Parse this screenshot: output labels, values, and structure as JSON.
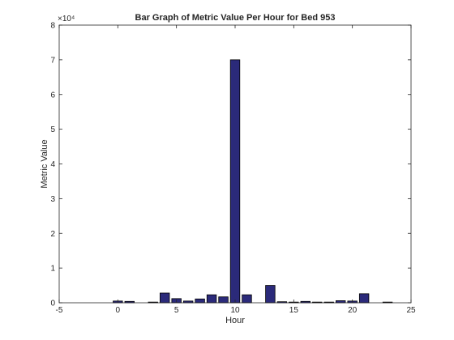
{
  "chart_data": {
    "type": "bar",
    "title": "Bar Graph of Metric Value Per Hour for Bed 953",
    "xlabel": "Hour",
    "ylabel": "Metric Value",
    "xlim": [
      -5,
      25
    ],
    "ylim": [
      0,
      80000
    ],
    "xticks": [
      -5,
      0,
      5,
      10,
      15,
      20,
      25
    ],
    "xtick_labels": [
      "-5",
      "0",
      "5",
      "10",
      "15",
      "20",
      "25"
    ],
    "yticks": [
      0,
      10000,
      20000,
      30000,
      40000,
      50000,
      60000,
      70000,
      80000
    ],
    "ytick_labels": [
      "0",
      "1",
      "2",
      "3",
      "4",
      "5",
      "6",
      "7",
      "8"
    ],
    "y_exponent_label": "×10⁴",
    "grid": false,
    "bar_color": "#2b2a7a",
    "x": [
      0,
      1,
      3,
      4,
      5,
      6,
      7,
      8,
      9,
      10,
      11,
      13,
      14,
      15,
      16,
      17,
      18,
      19,
      20,
      21,
      23
    ],
    "values": [
      500,
      400,
      200,
      2800,
      1200,
      500,
      1100,
      2300,
      1700,
      70000,
      2300,
      5000,
      300,
      200,
      400,
      200,
      200,
      600,
      500,
      2600,
      200
    ]
  }
}
